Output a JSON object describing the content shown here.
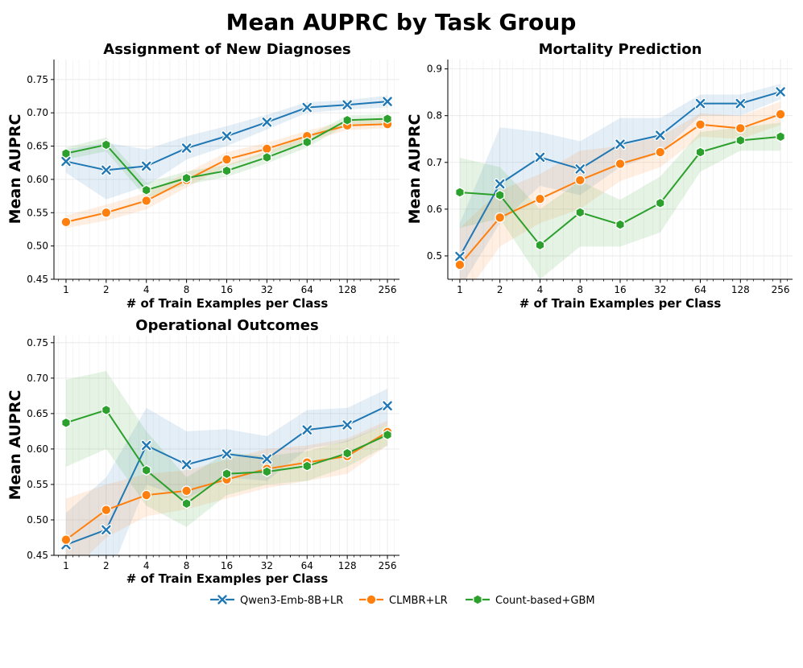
{
  "title": "Mean AUPRC by Task Group",
  "colors": {
    "Qwen3-Emb-8B+LR": "#1f77b4",
    "CLMBR+LR": "#ff7f0e",
    "Count-based+GBM": "#2ca02c"
  },
  "legend": [
    {
      "name": "Qwen3-Emb-8B+LR",
      "marker": "x"
    },
    {
      "name": "CLMBR+LR",
      "marker": "circle"
    },
    {
      "name": "Count-based+GBM",
      "marker": "hexagon"
    }
  ],
  "chart_data": [
    {
      "type": "line",
      "title": "Assignment of New Diagnoses",
      "xlabel": "# of Train Examples per Class",
      "ylabel": "Mean AUPRC",
      "x": [
        1,
        2,
        4,
        8,
        16,
        32,
        64,
        128,
        256
      ],
      "xscale": "log2",
      "ylim": [
        0.45,
        0.78
      ],
      "yticks": [
        "0.45",
        "0.50",
        "0.55",
        "0.60",
        "0.65",
        "0.70",
        "0.75"
      ],
      "grid": true,
      "series": [
        {
          "name": "Qwen3-Emb-8B+LR",
          "values": [
            0.627,
            0.614,
            0.62,
            0.647,
            0.665,
            0.686,
            0.708,
            0.712,
            0.717
          ],
          "lower": [
            0.61,
            0.57,
            0.59,
            0.63,
            0.65,
            0.675,
            0.7,
            0.705,
            0.708
          ],
          "upper": [
            0.645,
            0.655,
            0.645,
            0.665,
            0.68,
            0.697,
            0.716,
            0.719,
            0.726
          ]
        },
        {
          "name": "CLMBR+LR",
          "values": [
            0.536,
            0.55,
            0.568,
            0.599,
            0.63,
            0.646,
            0.665,
            0.681,
            0.683
          ],
          "lower": [
            0.527,
            0.538,
            0.555,
            0.588,
            0.62,
            0.637,
            0.657,
            0.674,
            0.677
          ],
          "upper": [
            0.546,
            0.562,
            0.58,
            0.61,
            0.641,
            0.655,
            0.673,
            0.688,
            0.69
          ]
        },
        {
          "name": "Count-based+GBM",
          "values": [
            0.639,
            0.652,
            0.584,
            0.602,
            0.613,
            0.633,
            0.656,
            0.689,
            0.691
          ],
          "lower": [
            0.63,
            0.642,
            0.572,
            0.592,
            0.604,
            0.624,
            0.648,
            0.682,
            0.684
          ],
          "upper": [
            0.648,
            0.663,
            0.595,
            0.612,
            0.622,
            0.642,
            0.665,
            0.696,
            0.698
          ]
        }
      ]
    },
    {
      "type": "line",
      "title": "Mortality Prediction",
      "xlabel": "# of Train Examples per Class",
      "ylabel": "Mean AUPRC",
      "x": [
        1,
        2,
        4,
        8,
        16,
        32,
        64,
        128,
        256
      ],
      "xscale": "log2",
      "ylim": [
        0.45,
        0.92
      ],
      "yticks": [
        "0.5",
        "0.6",
        "0.7",
        "0.8",
        "0.9"
      ],
      "grid": true,
      "series": [
        {
          "name": "Qwen3-Emb-8B+LR",
          "values": [
            0.499,
            0.654,
            0.711,
            0.686,
            0.739,
            0.758,
            0.826,
            0.826,
            0.851
          ],
          "lower": [
            0.43,
            0.57,
            0.65,
            0.63,
            0.69,
            0.72,
            0.8,
            0.8,
            0.835
          ],
          "upper": [
            0.57,
            0.775,
            0.765,
            0.745,
            0.795,
            0.795,
            0.845,
            0.845,
            0.868
          ]
        },
        {
          "name": "CLMBR+LR",
          "values": [
            0.481,
            0.582,
            0.622,
            0.662,
            0.697,
            0.722,
            0.781,
            0.773,
            0.803
          ],
          "lower": [
            0.4,
            0.52,
            0.57,
            0.6,
            0.66,
            0.69,
            0.755,
            0.75,
            0.78
          ],
          "upper": [
            0.56,
            0.64,
            0.675,
            0.725,
            0.735,
            0.755,
            0.805,
            0.8,
            0.83
          ]
        },
        {
          "name": "Count-based+GBM",
          "values": [
            0.636,
            0.63,
            0.523,
            0.593,
            0.567,
            0.613,
            0.722,
            0.747,
            0.755
          ],
          "lower": [
            0.56,
            0.58,
            0.45,
            0.52,
            0.52,
            0.55,
            0.68,
            0.725,
            0.725
          ],
          "upper": [
            0.71,
            0.69,
            0.6,
            0.66,
            0.62,
            0.67,
            0.765,
            0.775,
            0.785
          ]
        }
      ]
    },
    {
      "type": "line",
      "title": "Operational Outcomes",
      "xlabel": "# of Train Examples per Class",
      "ylabel": "Mean AUPRC",
      "x": [
        1,
        2,
        4,
        8,
        16,
        32,
        64,
        128,
        256
      ],
      "xscale": "log2",
      "ylim": [
        0.45,
        0.76
      ],
      "yticks": [
        "0.45",
        "0.50",
        "0.55",
        "0.60",
        "0.65",
        "0.70",
        "0.75"
      ],
      "grid": true,
      "series": [
        {
          "name": "Qwen3-Emb-8B+LR",
          "values": [
            0.465,
            0.486,
            0.605,
            0.578,
            0.593,
            0.586,
            0.627,
            0.634,
            0.661
          ],
          "lower": [
            0.42,
            0.41,
            0.55,
            0.53,
            0.56,
            0.555,
            0.6,
            0.61,
            0.635
          ],
          "upper": [
            0.51,
            0.56,
            0.658,
            0.625,
            0.628,
            0.618,
            0.655,
            0.658,
            0.685
          ]
        },
        {
          "name": "CLMBR+LR",
          "values": [
            0.472,
            0.514,
            0.535,
            0.541,
            0.557,
            0.572,
            0.581,
            0.59,
            0.624
          ],
          "lower": [
            0.42,
            0.475,
            0.505,
            0.515,
            0.53,
            0.545,
            0.555,
            0.565,
            0.605
          ],
          "upper": [
            0.53,
            0.55,
            0.565,
            0.57,
            0.585,
            0.6,
            0.605,
            0.615,
            0.64
          ]
        },
        {
          "name": "Count-based+GBM",
          "values": [
            0.637,
            0.655,
            0.57,
            0.523,
            0.565,
            0.568,
            0.576,
            0.594,
            0.62
          ],
          "lower": [
            0.575,
            0.6,
            0.52,
            0.49,
            0.535,
            0.55,
            0.555,
            0.575,
            0.605
          ],
          "upper": [
            0.698,
            0.71,
            0.625,
            0.56,
            0.595,
            0.59,
            0.597,
            0.612,
            0.635
          ]
        }
      ]
    }
  ]
}
